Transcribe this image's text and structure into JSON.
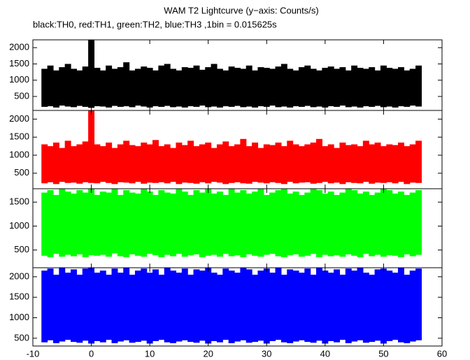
{
  "chart_data": [
    {
      "type": "range",
      "title": "WAM T2 Lightcurve (y−axis: Counts/s)",
      "subtitle": "black:TH0, red:TH1, green:TH2, blue:TH3 ,1bin = 0.015625s",
      "color": "#000000",
      "xlim": [
        -10,
        60
      ],
      "ylim": [
        70,
        2240
      ],
      "yticks": [
        500,
        1000,
        1500,
        2000
      ],
      "x": [
        -8,
        -7,
        -6,
        -5,
        -4,
        -3,
        -2,
        -1,
        0,
        1,
        2,
        3,
        4,
        5,
        6,
        7,
        8,
        9,
        10,
        11,
        12,
        13,
        14,
        15,
        16,
        17,
        18,
        19,
        20,
        21,
        22,
        23,
        24,
        25,
        26,
        27,
        28,
        29,
        30,
        31,
        32,
        33,
        34,
        35,
        36,
        37,
        38,
        39,
        40,
        41,
        42,
        43,
        44,
        45,
        46,
        47,
        48,
        49,
        50,
        51,
        52,
        53,
        54,
        55,
        56
      ],
      "low": [
        180,
        200,
        160,
        220,
        190,
        170,
        210,
        180,
        150,
        200,
        190,
        160,
        210,
        180,
        200,
        170,
        220,
        190,
        160,
        200,
        180,
        210,
        170,
        190,
        160,
        200,
        180,
        220,
        170,
        190,
        160,
        200,
        180,
        210,
        170,
        190,
        160,
        200,
        180,
        220,
        170,
        190,
        160,
        200,
        180,
        210,
        170,
        190,
        160,
        200,
        180,
        220,
        170,
        190,
        160,
        200,
        180,
        210,
        170,
        190,
        160,
        200,
        180,
        220,
        190
      ],
      "high": [
        1350,
        1450,
        1300,
        1400,
        1500,
        1350,
        1300,
        1420,
        2240,
        1380,
        1300,
        1450,
        1350,
        1400,
        1550,
        1300,
        1350,
        1420,
        1380,
        1300,
        1450,
        1500,
        1350,
        1300,
        1400,
        1380,
        1450,
        1320,
        1400,
        1500,
        1350,
        1300,
        1420,
        1380,
        1350,
        1450,
        1300,
        1400,
        1380,
        1350,
        1420,
        1500,
        1350,
        1300,
        1400,
        1450,
        1350,
        1300,
        1380,
        1420,
        1350,
        1400,
        1300,
        1450,
        1380,
        1350,
        1400,
        1300,
        1450,
        1380,
        1350,
        1400,
        1300,
        1350,
        1450
      ]
    },
    {
      "type": "range",
      "color": "#ff0000",
      "xlim": [
        -10,
        60
      ],
      "ylim": [
        70,
        2240
      ],
      "yticks": [
        500,
        1000,
        1500,
        2000
      ],
      "x": [
        -8,
        -7,
        -6,
        -5,
        -4,
        -3,
        -2,
        -1,
        0,
        1,
        2,
        3,
        4,
        5,
        6,
        7,
        8,
        9,
        10,
        11,
        12,
        13,
        14,
        15,
        16,
        17,
        18,
        19,
        20,
        21,
        22,
        23,
        24,
        25,
        26,
        27,
        28,
        29,
        30,
        31,
        32,
        33,
        34,
        35,
        36,
        37,
        38,
        39,
        40,
        41,
        42,
        43,
        44,
        45,
        46,
        47,
        48,
        49,
        50,
        51,
        52,
        53,
        54,
        55,
        56
      ],
      "low": [
        220,
        250,
        200,
        260,
        230,
        240,
        210,
        250,
        230,
        220,
        260,
        230,
        200,
        250,
        240,
        220,
        260,
        210,
        240,
        230,
        250,
        220,
        260,
        200,
        240,
        230,
        210,
        250,
        220,
        260,
        240,
        200,
        230,
        250,
        220,
        210,
        260,
        240,
        220,
        250,
        230,
        200,
        260,
        220,
        240,
        250,
        210,
        230,
        260,
        220,
        240,
        200,
        250,
        230,
        220,
        260,
        210,
        240,
        230,
        250,
        220,
        260,
        200,
        240,
        230
      ],
      "high": [
        1300,
        1250,
        1350,
        1200,
        1400,
        1250,
        1300,
        1380,
        2240,
        1300,
        1250,
        1350,
        1200,
        1300,
        1400,
        1280,
        1250,
        1350,
        1300,
        1420,
        1250,
        1300,
        1200,
        1350,
        1280,
        1400,
        1250,
        1300,
        1350,
        1200,
        1300,
        1380,
        1250,
        1300,
        1450,
        1250,
        1350,
        1200,
        1300,
        1280,
        1350,
        1250,
        1400,
        1300,
        1250,
        1300,
        1350,
        1450,
        1250,
        1300,
        1200,
        1350,
        1280,
        1300,
        1250,
        1400,
        1300,
        1350,
        1250,
        1300,
        1280,
        1350,
        1250,
        1300,
        1400
      ]
    },
    {
      "type": "range",
      "color": "#00ff00",
      "xlim": [
        -10,
        60
      ],
      "ylim": [
        130,
        1780
      ],
      "yticks": [
        500,
        1000,
        1500
      ],
      "x": [
        -8,
        -7,
        -6,
        -5,
        -4,
        -3,
        -2,
        -1,
        0,
        1,
        2,
        3,
        4,
        5,
        6,
        7,
        8,
        9,
        10,
        11,
        12,
        13,
        14,
        15,
        16,
        17,
        18,
        19,
        20,
        21,
        22,
        23,
        24,
        25,
        26,
        27,
        28,
        29,
        30,
        31,
        32,
        33,
        34,
        35,
        36,
        37,
        38,
        39,
        40,
        41,
        42,
        43,
        44,
        45,
        46,
        47,
        48,
        49,
        50,
        51,
        52,
        53,
        54,
        55,
        56
      ],
      "low": [
        380,
        350,
        420,
        360,
        400,
        370,
        410,
        350,
        390,
        380,
        400,
        360,
        430,
        370,
        350,
        410,
        380,
        360,
        420,
        390,
        350,
        400,
        370,
        420,
        360,
        390,
        410,
        350,
        380,
        400,
        360,
        420,
        370,
        390,
        350,
        410,
        380,
        360,
        400,
        420,
        370,
        350,
        390,
        410,
        360,
        380,
        420,
        350,
        400,
        370,
        390,
        360,
        410,
        380,
        350,
        420,
        370,
        400,
        360,
        390,
        380,
        350,
        410,
        370,
        400
      ],
      "high": [
        1700,
        1750,
        1650,
        1780,
        1720,
        1680,
        1750,
        1700,
        1780,
        1650,
        1720,
        1700,
        1780,
        1650,
        1750,
        1700,
        1680,
        1780,
        1720,
        1650,
        1750,
        1700,
        1680,
        1780,
        1720,
        1650,
        1750,
        1700,
        1780,
        1680,
        1720,
        1650,
        1780,
        1700,
        1750,
        1680,
        1720,
        1780,
        1650,
        1700,
        1750,
        1780,
        1680,
        1720,
        1650,
        1700,
        1780,
        1750,
        1680,
        1720,
        1650,
        1700,
        1780,
        1750,
        1680,
        1720,
        1650,
        1700,
        1780,
        1750,
        1680,
        1720,
        1650,
        1700,
        1750
      ]
    },
    {
      "type": "range",
      "color": "#0000ff",
      "xlim": [
        -10,
        60
      ],
      "ylim": [
        310,
        2220
      ],
      "yticks": [
        500,
        1000,
        1500,
        2000
      ],
      "xticks": [
        -10,
        0,
        10,
        20,
        30,
        40,
        50,
        60
      ],
      "x": [
        -8,
        -7,
        -6,
        -5,
        -4,
        -3,
        -2,
        -1,
        0,
        1,
        2,
        3,
        4,
        5,
        6,
        7,
        8,
        9,
        10,
        11,
        12,
        13,
        14,
        15,
        16,
        17,
        18,
        19,
        20,
        21,
        22,
        23,
        24,
        25,
        26,
        27,
        28,
        29,
        30,
        31,
        32,
        33,
        34,
        35,
        36,
        37,
        38,
        39,
        40,
        41,
        42,
        43,
        44,
        45,
        46,
        47,
        48,
        49,
        50,
        51,
        52,
        53,
        54,
        55,
        56
      ],
      "low": [
        400,
        450,
        380,
        420,
        460,
        410,
        390,
        440,
        370,
        430,
        400,
        460,
        380,
        420,
        450,
        390,
        410,
        440,
        370,
        430,
        460,
        400,
        380,
        420,
        450,
        410,
        390,
        440,
        370,
        430,
        400,
        460,
        380,
        420,
        450,
        390,
        410,
        440,
        370,
        430,
        460,
        400,
        380,
        420,
        450,
        410,
        390,
        440,
        370,
        430,
        400,
        460,
        380,
        420,
        450,
        390,
        410,
        440,
        370,
        430,
        460,
        400,
        380,
        420,
        450
      ],
      "high": [
        2150,
        2200,
        2050,
        2220,
        2100,
        2180,
        2050,
        2200,
        2220,
        2100,
        2150,
        2050,
        2200,
        2100,
        2220,
        2050,
        2150,
        2200,
        2100,
        2180,
        2050,
        2220,
        2150,
        2100,
        2200,
        2050,
        2180,
        2150,
        2220,
        2100,
        2050,
        2200,
        2150,
        2100,
        2220,
        2180,
        2050,
        2150,
        2200,
        2100,
        2220,
        2050,
        2180,
        2150,
        2100,
        2200,
        2050,
        2220,
        2150,
        2100,
        2180,
        2050,
        2200,
        2150,
        2220,
        2100,
        2050,
        2180,
        2200,
        2150,
        2100,
        2220,
        2050,
        2150,
        2200
      ]
    }
  ]
}
